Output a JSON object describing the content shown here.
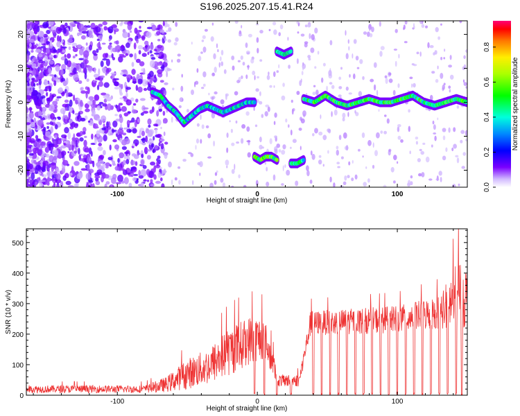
{
  "title": "S196.2025.207.15.41.R24",
  "chart_data": [
    {
      "type": "heatmap",
      "xlabel": "Height of straight line (km)",
      "ylabel": "Frequency (Hz)",
      "xlim": [
        -165,
        150
      ],
      "ylim": [
        -25,
        24
      ],
      "x_ticks": [
        -100,
        0,
        100
      ],
      "y_ticks": [
        -20,
        -10,
        0,
        10,
        20
      ],
      "colorbar": {
        "label": "Normalized spectral amplitude",
        "range": [
          0.0,
          0.95
        ],
        "ticks": [
          0.0,
          0.2,
          0.4,
          0.6,
          0.8
        ],
        "colors": [
          "#ffffff",
          "#c9a8ff",
          "#6a00ff",
          "#0000ff",
          "#00aaff",
          "#00ffcc",
          "#00ff00",
          "#aaff00",
          "#ffee00",
          "#ff6600",
          "#ff0000",
          "#ff0066"
        ]
      },
      "segments": [
        {
          "x_start": -75,
          "x_end": -2,
          "freq": [
            3,
            2,
            -1,
            -3,
            -6,
            -4,
            -2,
            -1,
            -2,
            -3,
            -2,
            -1,
            0,
            0
          ],
          "level": 0.45
        },
        {
          "x_start": -2,
          "x_end": 14,
          "freq": [
            -16,
            -17,
            -16,
            -16,
            -17
          ],
          "level": 0.6
        },
        {
          "x_start": 14,
          "x_end": 24,
          "freq": [
            15,
            14,
            15
          ],
          "level": 0.5
        },
        {
          "x_start": 24,
          "x_end": 33,
          "freq": [
            -18,
            -18,
            -17
          ],
          "level": 0.5
        },
        {
          "x_start": 33,
          "x_end": 150,
          "freq": [
            1,
            0,
            2,
            0,
            -1,
            0,
            1,
            0,
            0,
            1,
            2,
            0,
            -1,
            0,
            1,
            0
          ],
          "level": 0.55
        }
      ]
    },
    {
      "type": "line",
      "xlabel": "Height of straight line (km)",
      "ylabel": "SNR (10 * v/v)",
      "xlim": [
        -165,
        150
      ],
      "ylim": [
        0,
        545
      ],
      "x_ticks": [
        -100,
        0,
        100
      ],
      "y_ticks": [
        0,
        100,
        200,
        300,
        400,
        500
      ],
      "color": "#ee3333",
      "envelope": [
        {
          "x": -165,
          "base": 15,
          "amp": 25
        },
        {
          "x": -80,
          "base": 15,
          "amp": 25
        },
        {
          "x": -65,
          "base": 25,
          "amp": 50
        },
        {
          "x": -50,
          "base": 50,
          "amp": 100
        },
        {
          "x": -35,
          "base": 70,
          "amp": 120
        },
        {
          "x": -20,
          "base": 110,
          "amp": 160
        },
        {
          "x": -5,
          "base": 150,
          "amp": 160
        },
        {
          "x": 5,
          "base": 160,
          "amp": 140
        },
        {
          "x": 15,
          "base": 40,
          "amp": 40
        },
        {
          "x": 30,
          "base": 40,
          "amp": 40
        },
        {
          "x": 38,
          "base": 220,
          "amp": 80
        },
        {
          "x": 100,
          "base": 230,
          "amp": 90
        },
        {
          "x": 130,
          "base": 250,
          "amp": 110
        },
        {
          "x": 145,
          "base": 280,
          "amp": 250
        },
        {
          "x": 150,
          "base": 280,
          "amp": 200
        }
      ],
      "dropouts_x": [
        -2,
        5,
        14,
        24,
        40,
        46,
        52,
        58,
        64,
        70,
        76,
        82,
        88,
        94,
        100,
        106,
        112,
        118,
        124,
        130,
        136,
        142,
        146
      ]
    }
  ]
}
